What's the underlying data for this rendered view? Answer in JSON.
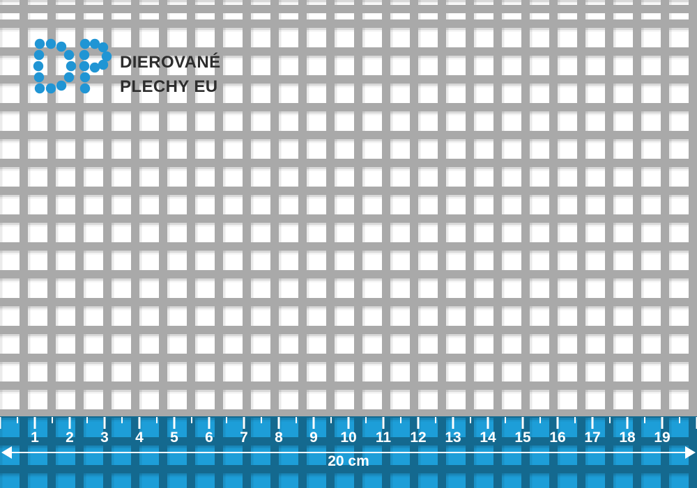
{
  "brand": {
    "line1": "DIEROVANÉ",
    "line2": "PLECHY EU",
    "logo_color": "#2095d4",
    "text_color": "#2d2d2d"
  },
  "sheet": {
    "metal_color": "#a9a9a9",
    "hole_color": "#ffffff"
  },
  "ruler": {
    "numbers": [
      "1",
      "2",
      "3",
      "4",
      "5",
      "6",
      "7",
      "8",
      "9",
      "10",
      "11",
      "12",
      "13",
      "14",
      "15",
      "16",
      "17",
      "18",
      "19"
    ],
    "total_label": "20 cm",
    "tint_color": "#1d9ed8",
    "mark_color": "#ffffff"
  }
}
